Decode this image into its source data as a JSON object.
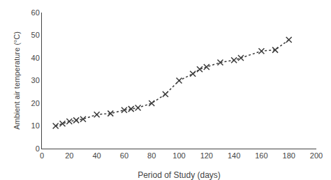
{
  "chart_data": {
    "type": "line",
    "xlabel": "Period of Study (days)",
    "ylabel": "Ambient air temperature (°C)",
    "x": [
      10,
      15,
      20,
      25,
      30,
      40,
      50,
      60,
      65,
      70,
      80,
      90,
      100,
      110,
      115,
      120,
      130,
      140,
      145,
      160,
      170,
      180
    ],
    "values": [
      10,
      11,
      12,
      12.5,
      13,
      15,
      15.5,
      17,
      17.5,
      18,
      20,
      24,
      30,
      33,
      35,
      36,
      38,
      39,
      40,
      43,
      43.5,
      48
    ],
    "color": "#3a3a3a",
    "marker": "x",
    "line_style": "dotted",
    "xlim": [
      0,
      200
    ],
    "ylim": [
      0,
      60
    ],
    "xticks": [
      0,
      20,
      40,
      60,
      80,
      100,
      120,
      140,
      160,
      180,
      200
    ],
    "yticks": [
      0,
      10,
      20,
      30,
      40,
      50,
      60
    ],
    "grid": false
  }
}
